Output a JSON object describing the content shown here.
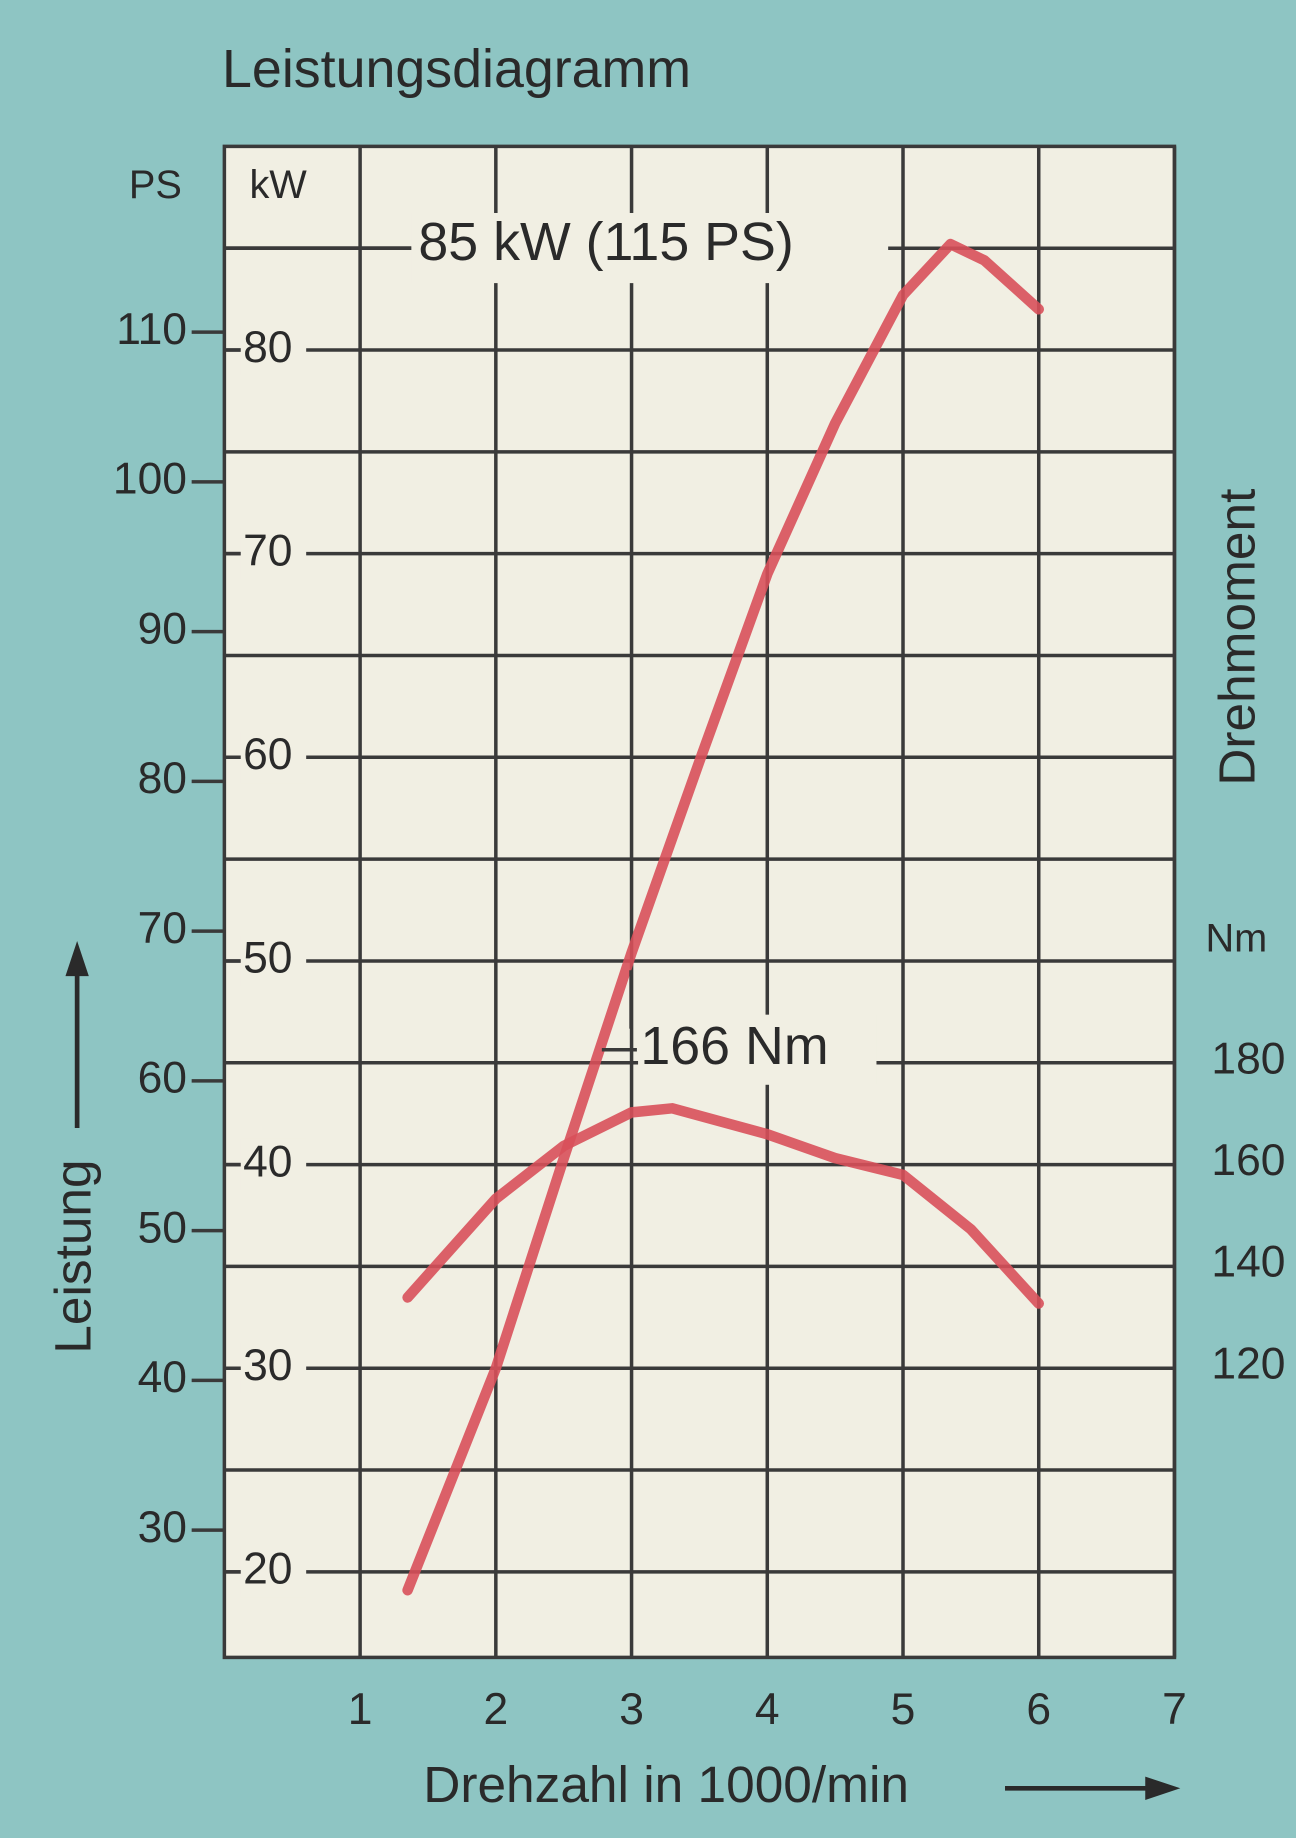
{
  "chart_data": {
    "type": "line",
    "title": "Leistungsdiagramm",
    "x_label": "Drehzahl in 1000/min",
    "y_label": "Leistung",
    "y2_label": "Drehmoment",
    "ps_unit": "PS",
    "kw_unit": "kW",
    "nm_unit": "Nm",
    "xlim": [
      0,
      7
    ],
    "xticks": [
      1,
      2,
      3,
      4,
      5,
      6,
      7
    ],
    "ylim": [
      15.8,
      90
    ],
    "yticks": [
      20,
      30,
      40,
      50,
      60,
      70,
      80
    ],
    "ygrid": [
      20,
      25,
      30,
      35,
      40,
      45,
      50,
      55,
      60,
      65,
      70,
      75,
      80,
      85
    ],
    "ps_lim": [
      21.5,
      122.4
    ],
    "ps_ticks": [
      30,
      40,
      50,
      60,
      70,
      80,
      90,
      100,
      110
    ],
    "y2lim": [
      62.8,
      360
    ],
    "y2ticks": [
      120,
      140,
      160,
      180
    ],
    "grid": true,
    "series": [
      {
        "name": "Leistung",
        "color": "#d8505a",
        "x": [
          1.35,
          2,
          2.5,
          3,
          3.5,
          4,
          4.5,
          5,
          5.35,
          5.6,
          6
        ],
        "values": [
          19.1,
          30,
          40.3,
          50.4,
          59.8,
          69,
          76.4,
          82.7,
          85.2,
          84.4,
          82
        ]
      },
      {
        "name": "Drehmoment",
        "color": "#d8505a",
        "axis": "y2",
        "x": [
          1.35,
          2,
          2.5,
          3,
          3.3,
          4,
          4.5,
          5,
          5.5,
          6
        ],
        "values": [
          133.6,
          153,
          163.4,
          170,
          170.8,
          165.7,
          161,
          157.7,
          147,
          132.4
        ]
      }
    ],
    "annotations": [
      "85 kW (115 PS)",
      "166 Nm"
    ]
  }
}
